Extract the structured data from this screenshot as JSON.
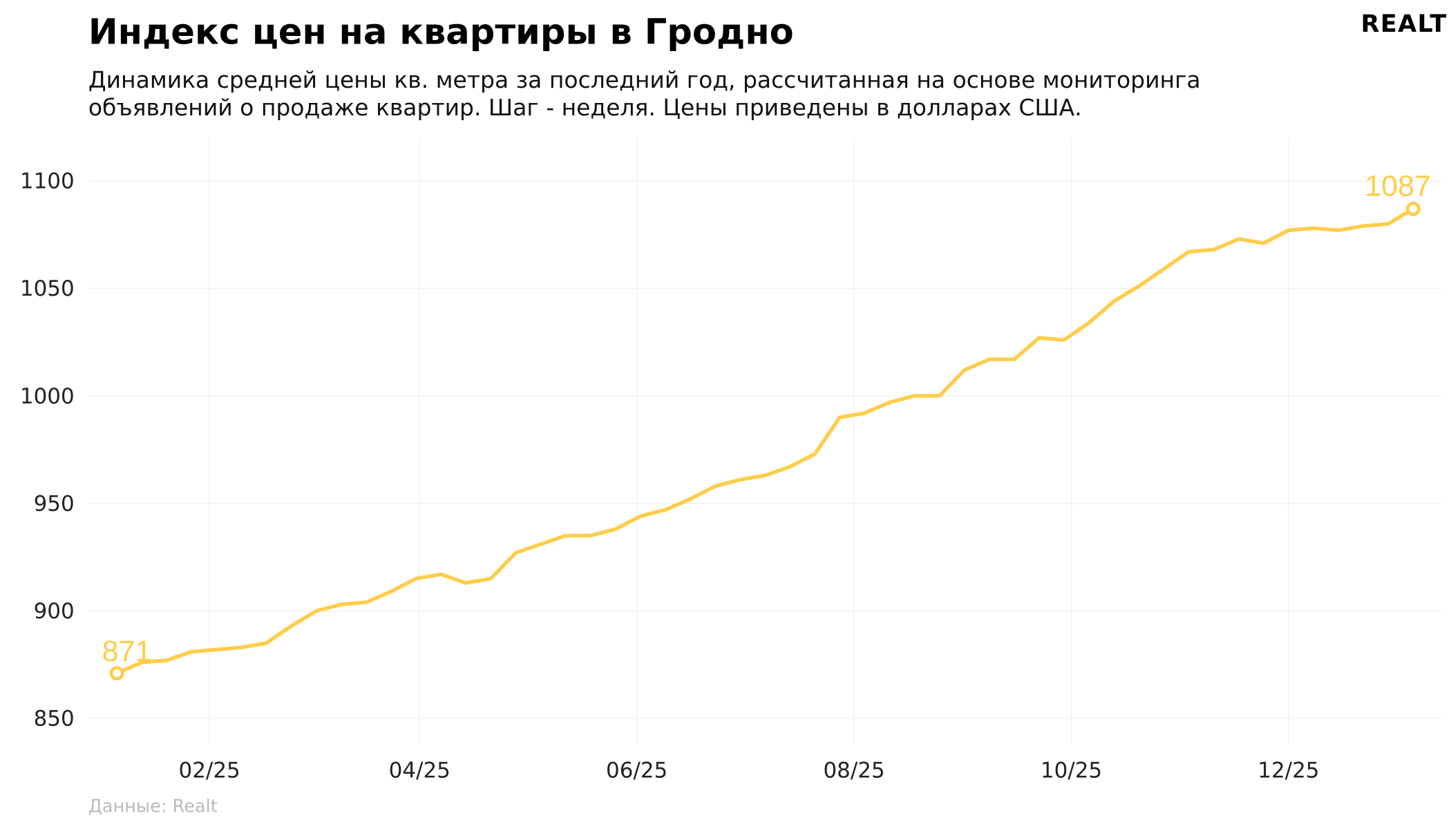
{
  "title": "Индекс цен на квартиры в Гродно",
  "subtitle_lines": [
    "Динамика средней цены кв. метра за последний год, рассчитанная на основе мониторинга",
    "объявлений о продаже квартир. Шаг - неделя. Цены приведены в долларах США."
  ],
  "source": "Данные: Realt",
  "logo": "REALT",
  "chart_data": {
    "type": "line",
    "title": "Индекс цен на квартиры в Гродно",
    "xlabel": "",
    "ylabel": "",
    "color": "#FFCD4A",
    "grid": true,
    "xlim": [
      "2024-12-29",
      "2026-01-13"
    ],
    "ylim": [
      838,
      1120
    ],
    "y_ticks": [
      850,
      900,
      950,
      1000,
      1050,
      1100
    ],
    "x_ticks": [
      {
        "date": "2025-02-01",
        "label": "02/25"
      },
      {
        "date": "2025-04-01",
        "label": "04/25"
      },
      {
        "date": "2025-06-01",
        "label": "06/25"
      },
      {
        "date": "2025-08-01",
        "label": "08/25"
      },
      {
        "date": "2025-10-01",
        "label": "10/25"
      },
      {
        "date": "2025-12-01",
        "label": "12/25"
      }
    ],
    "x": [
      "2025-01-06",
      "2025-01-13",
      "2025-01-20",
      "2025-01-27",
      "2025-02-03",
      "2025-02-10",
      "2025-02-17",
      "2025-02-24",
      "2025-03-03",
      "2025-03-10",
      "2025-03-17",
      "2025-03-24",
      "2025-03-31",
      "2025-04-07",
      "2025-04-14",
      "2025-04-21",
      "2025-04-28",
      "2025-05-05",
      "2025-05-12",
      "2025-05-19",
      "2025-05-26",
      "2025-06-02",
      "2025-06-09",
      "2025-06-16",
      "2025-06-23",
      "2025-06-30",
      "2025-07-07",
      "2025-07-14",
      "2025-07-21",
      "2025-07-28",
      "2025-08-04",
      "2025-08-11",
      "2025-08-18",
      "2025-08-25",
      "2025-09-01",
      "2025-09-08",
      "2025-09-15",
      "2025-09-22",
      "2025-09-29",
      "2025-10-06",
      "2025-10-13",
      "2025-10-20",
      "2025-10-27",
      "2025-11-03",
      "2025-11-10",
      "2025-11-17",
      "2025-11-24",
      "2025-12-01",
      "2025-12-08",
      "2025-12-15",
      "2025-12-22",
      "2025-12-29",
      "2026-01-05"
    ],
    "values": [
      871,
      876,
      877,
      881,
      882,
      883,
      885,
      893,
      900,
      903,
      904,
      909,
      915,
      917,
      913,
      915,
      927,
      931,
      935,
      935,
      938,
      944,
      947,
      952,
      958,
      961,
      963,
      967,
      973,
      990,
      992,
      997,
      1000,
      1000,
      1012,
      1017,
      1017,
      1027,
      1026,
      1034,
      1044,
      1051,
      1059,
      1067,
      1068,
      1073,
      1071,
      1077,
      1078,
      1077,
      1079,
      1080,
      1087
    ],
    "annotations": [
      {
        "date": "2025-01-06",
        "value": 871,
        "label": "871"
      },
      {
        "date": "2026-01-05",
        "value": 1087,
        "label": "1087"
      }
    ]
  }
}
